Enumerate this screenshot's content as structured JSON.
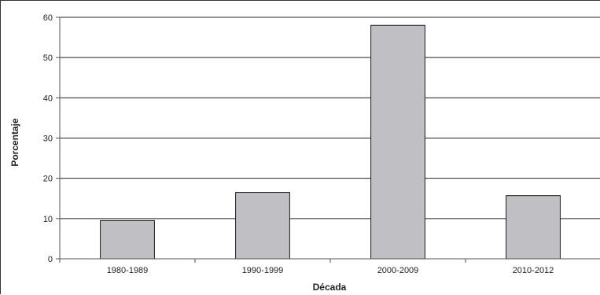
{
  "chart_data": {
    "type": "bar",
    "title": "",
    "xlabel": "Década",
    "ylabel": "Porcentaje",
    "categories": [
      "1980-1989",
      "1990-1999",
      "2000-2009",
      "2010-2012"
    ],
    "values": [
      9.5,
      16.5,
      58,
      15.7
    ],
    "ylim": [
      0,
      60
    ],
    "yticks": [
      0,
      10,
      20,
      30,
      40,
      50,
      60
    ],
    "grid": true,
    "legend": "none",
    "colors": {
      "bar_fill": "#c0c0c4",
      "bar_stroke": "#1a1a1a",
      "grid": "#222222",
      "axis": "#555555",
      "text": "#222222"
    }
  }
}
